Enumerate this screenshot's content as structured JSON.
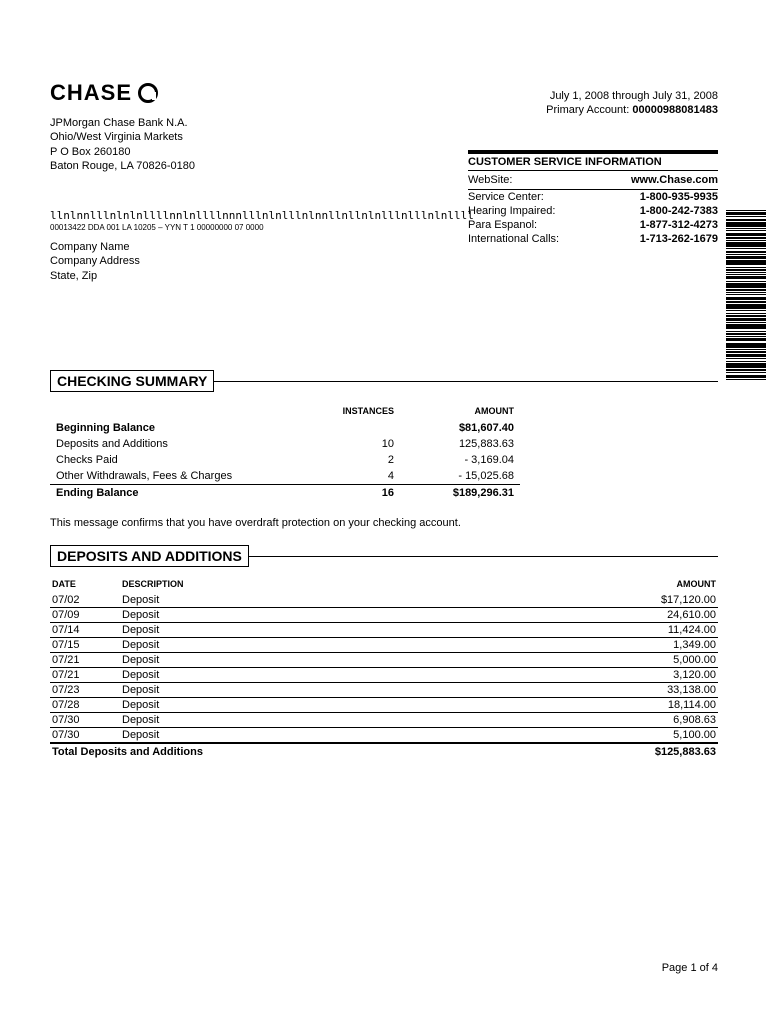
{
  "bank": {
    "logo_text": "CHASE",
    "name": "JPMorgan Chase Bank N.A.",
    "region": "Ohio/West Virginia Markets",
    "pobox": "P O Box 260180",
    "citystate": "Baton Rouge, LA 70826-0180"
  },
  "period": {
    "range": "July 1, 2008 through July 31, 2008",
    "account_label": "Primary Account:",
    "account_number": "00000988081483"
  },
  "customer_service": {
    "title": "CUSTOMER SERVICE INFORMATION",
    "rows": [
      {
        "label": "WebSite:",
        "value": "www.Chase.com"
      },
      {
        "label": "Service Center:",
        "value": "1-800-935-9935"
      },
      {
        "label": "Hearing Impaired:",
        "value": "1-800-242-7383"
      },
      {
        "label": "Para Espanol:",
        "value": "1-877-312-4273"
      },
      {
        "label": "International Calls:",
        "value": "1-713-262-1679"
      }
    ]
  },
  "mailing": {
    "postal_barcode": "llnlnnlllnlnlnllllnnlnllllnnnlllnlnlllnlnnllnllnlnlllnlllnlnllll",
    "postal_sub": "00013422 DDA 001 LA 10205 – YYN T 1 00000000 07 0000",
    "company_name": "Company Name",
    "company_address": "Company Address",
    "state_zip": "State, Zip"
  },
  "checking_summary": {
    "title": "CHECKING SUMMARY",
    "columns": [
      "",
      "INSTANCES",
      "AMOUNT"
    ],
    "rows": [
      {
        "label": "Beginning Balance",
        "instances": "",
        "amount": "$81,607.40",
        "bold": true
      },
      {
        "label": "Deposits and Additions",
        "instances": "10",
        "amount": "125,883.63",
        "bold": false
      },
      {
        "label": "Checks Paid",
        "instances": "2",
        "amount": "- 3,169.04",
        "bold": false
      },
      {
        "label": "Other Withdrawals, Fees & Charges",
        "instances": "4",
        "amount": "- 15,025.68",
        "bold": false
      },
      {
        "label": "Ending Balance",
        "instances": "16",
        "amount": "$189,296.31",
        "bold": true,
        "line_above": true
      }
    ]
  },
  "overdraft_msg": "This message confirms that you have overdraft protection on your checking account.",
  "deposits": {
    "title": "DEPOSITS AND ADDITIONS",
    "columns": [
      "DATE",
      "DESCRIPTION",
      "AMOUNT"
    ],
    "rows": [
      {
        "date": "07/02",
        "desc": "Deposit",
        "amount": "$17,120.00"
      },
      {
        "date": "07/09",
        "desc": "Deposit",
        "amount": "24,610.00"
      },
      {
        "date": "07/14",
        "desc": "Deposit",
        "amount": "11,424.00"
      },
      {
        "date": "07/15",
        "desc": "Deposit",
        "amount": "1,349.00"
      },
      {
        "date": "07/21",
        "desc": "Deposit",
        "amount": "5,000.00"
      },
      {
        "date": "07/21",
        "desc": "Deposit",
        "amount": "3,120.00"
      },
      {
        "date": "07/23",
        "desc": "Deposit",
        "amount": "33,138.00"
      },
      {
        "date": "07/28",
        "desc": "Deposit",
        "amount": "18,114.00"
      },
      {
        "date": "07/30",
        "desc": "Deposit",
        "amount": "6,908.63"
      },
      {
        "date": "07/30",
        "desc": "Deposit",
        "amount": "5,100.00"
      }
    ],
    "total_label": "Total Deposits and Additions",
    "total_amount": "$125,883.63"
  },
  "footer": {
    "page": "Page 1 of 4"
  },
  "colors": {
    "text": "#000000",
    "bg": "#ffffff",
    "rule": "#000000"
  }
}
